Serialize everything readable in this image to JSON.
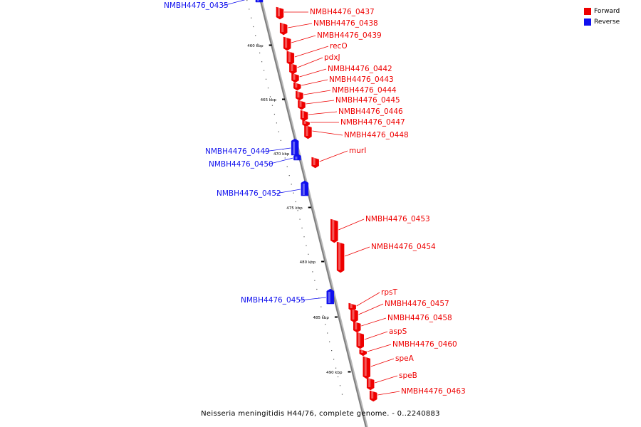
{
  "colors": {
    "forward": "#ee0000",
    "reverse": "#1010ee",
    "backbone": "#808080",
    "tick": "#000000"
  },
  "caption": "Neisseria meningitidis H44/76, complete genome. - 0..2240883",
  "legend": [
    {
      "label": "Forward",
      "color": "#ee0000"
    },
    {
      "label": "Reverse",
      "color": "#1010ee"
    }
  ],
  "scale": [
    {
      "label": "460 kbp"
    },
    {
      "label": "465 kbp"
    },
    {
      "label": "470 kbp"
    },
    {
      "label": "475 kbp"
    },
    {
      "label": "480 kbp"
    },
    {
      "label": "485 kbp"
    },
    {
      "label": "490 kbp"
    }
  ],
  "genes": [
    {
      "name": "NMBH4476_0435",
      "strand": "reverse"
    },
    {
      "name": "NMBH4476_0437",
      "strand": "forward"
    },
    {
      "name": "NMBH4476_0438",
      "strand": "forward"
    },
    {
      "name": "NMBH4476_0439",
      "strand": "forward"
    },
    {
      "name": "recO",
      "strand": "forward"
    },
    {
      "name": "pdxJ",
      "strand": "forward"
    },
    {
      "name": "NMBH4476_0442",
      "strand": "forward"
    },
    {
      "name": "NMBH4476_0443",
      "strand": "forward"
    },
    {
      "name": "NMBH4476_0444",
      "strand": "forward"
    },
    {
      "name": "NMBH4476_0445",
      "strand": "forward"
    },
    {
      "name": "NMBH4476_0446",
      "strand": "forward"
    },
    {
      "name": "NMBH4476_0447",
      "strand": "forward"
    },
    {
      "name": "NMBH4476_0448",
      "strand": "forward"
    },
    {
      "name": "NMBH4476_0449",
      "strand": "reverse"
    },
    {
      "name": "NMBH4476_0450",
      "strand": "reverse"
    },
    {
      "name": "murI",
      "strand": "forward"
    },
    {
      "name": "NMBH4476_0452",
      "strand": "reverse"
    },
    {
      "name": "NMBH4476_0453",
      "strand": "forward"
    },
    {
      "name": "NMBH4476_0454",
      "strand": "forward"
    },
    {
      "name": "NMBH4476_0455",
      "strand": "reverse"
    },
    {
      "name": "rpsT",
      "strand": "forward"
    },
    {
      "name": "NMBH4476_0457",
      "strand": "forward"
    },
    {
      "name": "NMBH4476_0458",
      "strand": "forward"
    },
    {
      "name": "aspS",
      "strand": "forward"
    },
    {
      "name": "NMBH4476_0460",
      "strand": "forward"
    },
    {
      "name": "speA",
      "strand": "forward"
    },
    {
      "name": "speB",
      "strand": "forward"
    },
    {
      "name": "NMBH4476_0463",
      "strand": "forward"
    }
  ]
}
